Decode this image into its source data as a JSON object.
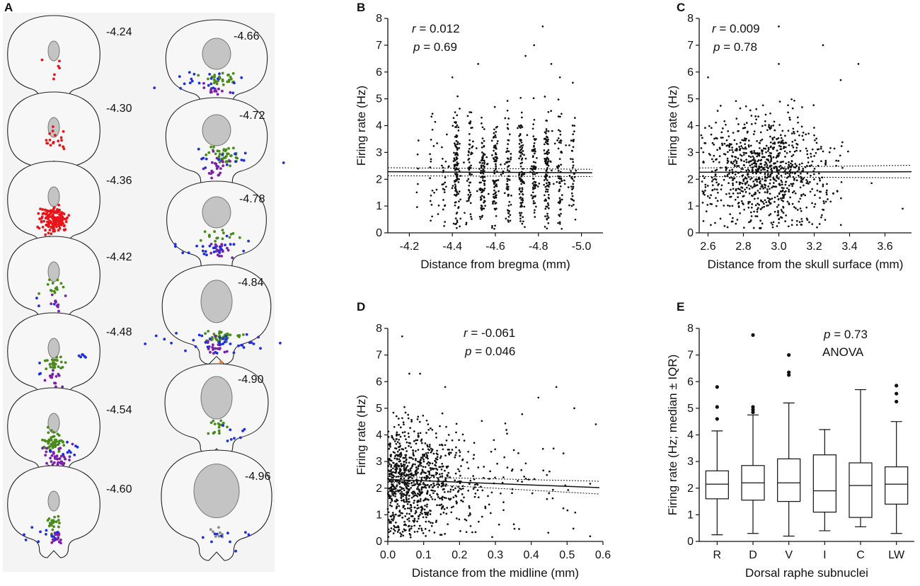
{
  "figure": {
    "panel_a": {
      "letter": "A",
      "left_sections": [
        "-4.24",
        "-4.30",
        "-4.36",
        "-4.42",
        "-4.48",
        "-4.54",
        "-4.60"
      ],
      "right_sections": [
        "-4.66",
        "-4.72",
        "-4.78",
        "-4.84",
        "-4.90",
        "-4.96"
      ],
      "colors": {
        "red": "#e8141a",
        "green": "#4a8a1c",
        "blue": "#1c2ee0",
        "purple": "#7a1fa8",
        "orange": "#f07d1c",
        "gray": "#8a8a8a",
        "background": "#f4f4f4"
      }
    }
  },
  "chart_data": [
    {
      "id": "B",
      "letter": "B",
      "type": "scatter",
      "xlabel": "Distance from bregma (mm)",
      "ylabel": "Firing rate (Hz)",
      "xlim": [
        -4.1,
        -5.1
      ],
      "ylim": [
        0,
        8
      ],
      "xticks": [
        "-4.2",
        "-4.4",
        "-4.6",
        "-4.8",
        "-5.0"
      ],
      "yticks": [
        "0",
        "1",
        "2",
        "3",
        "4",
        "5",
        "6",
        "7",
        "8"
      ],
      "stats": {
        "r_label": "r",
        "r_value": "= 0.012",
        "p_label": "p",
        "p_value": "= 0.69"
      },
      "regression": {
        "x": [
          -4.1,
          -5.05
        ],
        "y": [
          2.28,
          2.24
        ],
        "ci_lower": [
          2.13,
          2.1
        ],
        "ci_upper": [
          2.43,
          2.37
        ]
      },
      "columns": [
        -4.24,
        -4.3,
        -4.36,
        -4.42,
        -4.48,
        -4.54,
        -4.6,
        -4.66,
        -4.72,
        -4.78,
        -4.84,
        -4.9,
        -4.96
      ],
      "outliers": [
        [
          -4.82,
          7.7
        ],
        [
          -4.78,
          7.0
        ],
        [
          -4.52,
          6.3
        ],
        [
          -4.9,
          5.8
        ],
        [
          -4.96,
          5.6
        ],
        [
          -4.4,
          5.8
        ],
        [
          -4.86,
          6.3
        ],
        [
          -4.74,
          6.6
        ]
      ]
    },
    {
      "id": "C",
      "letter": "C",
      "type": "scatter",
      "xlabel": "Distance from the skull surface (mm)",
      "ylabel": "Firing rate (Hz)",
      "xlim": [
        2.55,
        3.75
      ],
      "ylim": [
        0,
        8
      ],
      "xticks": [
        "2.6",
        "2.8",
        "3.0",
        "3.2",
        "3.4",
        "3.6"
      ],
      "yticks": [
        "0",
        "1",
        "2",
        "3",
        "4",
        "5",
        "6",
        "7",
        "8"
      ],
      "stats": {
        "r_label": "r",
        "r_value": "= 0.009",
        "p_label": "p",
        "p_value": "= 0.78"
      },
      "regression": {
        "x": [
          2.55,
          3.75
        ],
        "y": [
          2.26,
          2.28
        ],
        "ci_lower": [
          2.1,
          2.05
        ],
        "ci_upper": [
          2.42,
          2.52
        ]
      },
      "outliers": [
        [
          3.0,
          7.7
        ],
        [
          3.25,
          7.0
        ],
        [
          3.0,
          6.3
        ],
        [
          3.45,
          6.3
        ],
        [
          3.35,
          5.7
        ],
        [
          2.6,
          5.8
        ],
        [
          3.7,
          0.9
        ]
      ]
    },
    {
      "id": "D",
      "letter": "D",
      "type": "scatter",
      "xlabel": "Distance from the midline (mm)",
      "ylabel": "Firing rate (Hz)",
      "xlim": [
        0,
        0.6
      ],
      "ylim": [
        0,
        8
      ],
      "xticks": [
        "0.0",
        "0.1",
        "0.2",
        "0.3",
        "0.4",
        "0.5",
        "0.6"
      ],
      "yticks": [
        "0",
        "1",
        "2",
        "3",
        "4",
        "5",
        "6",
        "7",
        "8"
      ],
      "stats": {
        "r_label": "r",
        "r_value": "= -0.061",
        "p_label": "p",
        "p_value": "= 0.046"
      },
      "regression": {
        "x": [
          0,
          0.59
        ],
        "y": [
          2.33,
          2.02
        ],
        "ci_lower": [
          2.22,
          1.78
        ],
        "ci_upper": [
          2.44,
          2.26
        ]
      },
      "outliers": [
        [
          0.04,
          7.7
        ],
        [
          0.06,
          6.3
        ],
        [
          0.09,
          6.3
        ],
        [
          0.16,
          5.8
        ],
        [
          0.47,
          5.8
        ],
        [
          0.58,
          4.4
        ],
        [
          0.42,
          5.4
        ],
        [
          0.52,
          5.0
        ]
      ]
    },
    {
      "id": "E",
      "letter": "E",
      "type": "box",
      "xlabel": "Dorsal raphe subnuclei",
      "ylabel": "Firing rate (Hz; median ± IQR)",
      "ylim": [
        0,
        8
      ],
      "yticks": [
        "0",
        "1",
        "2",
        "3",
        "4",
        "5",
        "6",
        "7",
        "8"
      ],
      "stats": {
        "p_label": "p",
        "p_value": "= 0.73",
        "test": "ANOVA"
      },
      "categories": [
        "R",
        "D",
        "V",
        "I",
        "C",
        "LW"
      ],
      "boxes": [
        {
          "name": "R",
          "min": 0.25,
          "q1": 1.6,
          "median": 2.15,
          "q3": 2.65,
          "max": 4.15,
          "outliers": [
            4.6,
            5.05,
            5.8
          ]
        },
        {
          "name": "D",
          "min": 0.3,
          "q1": 1.55,
          "median": 2.2,
          "q3": 2.85,
          "max": 4.75,
          "outliers": [
            4.85,
            4.95,
            5.05,
            7.75
          ]
        },
        {
          "name": "V",
          "min": 0.2,
          "q1": 1.5,
          "median": 2.2,
          "q3": 3.1,
          "max": 5.2,
          "outliers": [
            6.25,
            6.35,
            7.0
          ]
        },
        {
          "name": "I",
          "min": 0.4,
          "q1": 1.1,
          "median": 1.9,
          "q3": 3.25,
          "max": 4.2,
          "outliers": []
        },
        {
          "name": "C",
          "min": 0.55,
          "q1": 0.9,
          "median": 2.1,
          "q3": 2.95,
          "max": 5.7,
          "outliers": []
        },
        {
          "name": "LW",
          "min": 0.3,
          "q1": 1.4,
          "median": 2.15,
          "q3": 2.8,
          "max": 4.5,
          "outliers": [
            5.25,
            5.55,
            5.85
          ]
        }
      ]
    }
  ]
}
